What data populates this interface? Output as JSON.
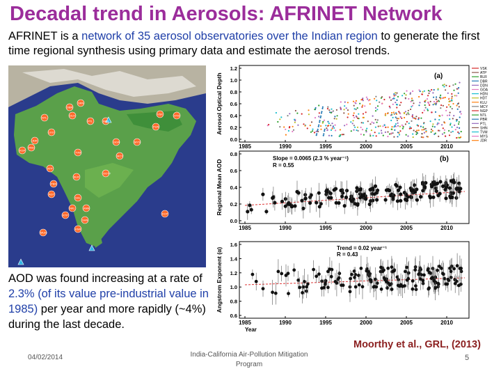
{
  "slide": {
    "title": "Decadal trend in Aerosols: AFRINET Network",
    "intro": {
      "part1": "AFRINET is a ",
      "highlight1": "network of 35 aerosol observatories over the Indian region",
      "part2": " to generate the first time regional synthesis using primary data and estimate the aerosol trends."
    },
    "finding": {
      "part1": "AOD was found increasing at a rate of ",
      "highlight1": "2.3% (of its value pre-industrial value in 1985)",
      "part2": " per year and more rapidly (~4%) during the last decade."
    },
    "footer": {
      "date": "04/02/2014",
      "center": "India-California Air-Pollution Mitigation Program",
      "citation": "Moorthy et al., GRL, (2013)",
      "page": "5"
    }
  },
  "map": {
    "stations": [
      "SRN",
      "DLH",
      "PTL",
      "DBR",
      "NTL",
      "LKO",
      "JDR",
      "KGP",
      "RNC",
      "BBR",
      "VSK",
      "HYD",
      "PUN",
      "GOA",
      "MYS",
      "TVM",
      "MCY",
      "ATP",
      "BLR",
      "OOTY",
      "PBR",
      "AGT",
      "SHL",
      "NKL",
      "ANN",
      "KTP",
      "KNR",
      "MUM",
      "KCP",
      "SHN"
    ]
  },
  "charts": {
    "years": [
      "1985",
      "1990",
      "1995",
      "2000",
      "2005",
      "2010"
    ],
    "panel_a": {
      "label": "(a)",
      "ylabel": "Aerosol Optical Depth",
      "yticks": [
        "1.2",
        "1.0",
        "0.8",
        "0.6",
        "0.4",
        "0.2",
        "0.0"
      ],
      "legend": [
        "VSK",
        "ATP",
        "BLR",
        "DBR",
        "DDN",
        "GOA",
        "HDN",
        "HDT",
        "KLU",
        "MCY",
        "NGP",
        "NTL",
        "PBR",
        "PTL",
        "SHN",
        "TVM",
        "MYS",
        "JDR"
      ],
      "legend_colors": [
        "#d62728",
        "#8c564b",
        "#2ca02c",
        "#1f77b4",
        "#9467bd",
        "#e377c2",
        "#17becf",
        "#bcbd22",
        "#ff7f0e",
        "#7f7f7f",
        "#d62728",
        "#2ca02c",
        "#1f77b4",
        "#9467bd",
        "#8c564b",
        "#17becf",
        "#e377c2",
        "#ff7f0e"
      ]
    },
    "panel_b": {
      "label": "(b)",
      "ylabel": "Regional Mean AOD",
      "yticks": [
        "0.8",
        "0.6",
        "0.4",
        "0.2",
        "0.0"
      ],
      "slope_text": "Slope = 0.0065 (2.3 % year⁻¹)",
      "r_text": "R = 0.55"
    },
    "panel_c": {
      "ylabel": "Angstrom Exponent (α)",
      "yticks": [
        "1.6",
        "1.4",
        "1.2",
        "1.0",
        "0.8",
        "0.6"
      ],
      "trend_text": "Trend = 0.02 year⁻¹",
      "r_text": "R = 0.43",
      "xlabel": "Year"
    }
  }
}
